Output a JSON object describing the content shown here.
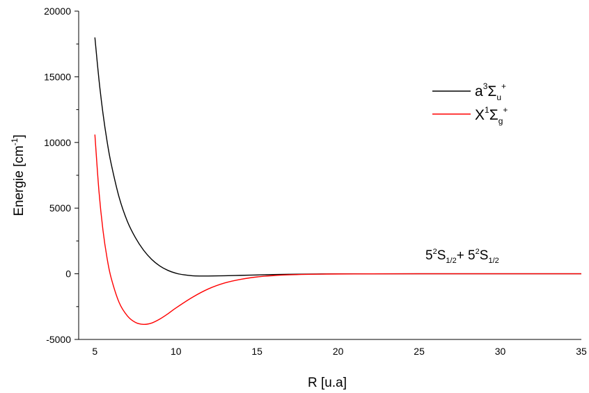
{
  "chart_data": {
    "type": "line",
    "xlabel": "R [u.a]",
    "ylabel": {
      "base": "Energie [cm",
      "sup": "-1",
      "end": "]"
    },
    "xlim": [
      4,
      35
    ],
    "ylim": [
      -5000,
      20000
    ],
    "x_ticks": [
      5,
      10,
      15,
      20,
      25,
      30,
      35
    ],
    "y_ticks": [
      -5000,
      0,
      5000,
      10000,
      15000,
      20000
    ],
    "x_tick_labels": [
      "5",
      "10",
      "15",
      "20",
      "25",
      "30",
      "35"
    ],
    "y_tick_labels": [
      "-5000",
      "0",
      "5000",
      "10000",
      "15000",
      "20000"
    ],
    "grid": false,
    "legend_position": "top-right",
    "series": [
      {
        "color": "#000000",
        "legend": {
          "base": "a",
          "sup": "3",
          "sym": "Σ",
          "sub": "u",
          "sup2": "+"
        },
        "x": [
          5,
          5.25,
          5.5,
          5.75,
          6,
          6.5,
          7,
          7.5,
          8,
          8.5,
          9,
          9.5,
          10,
          10.5,
          11,
          11.5,
          12,
          13,
          14,
          15,
          16,
          17,
          18,
          19,
          20,
          22,
          25,
          30,
          35
        ],
        "y": [
          18000,
          14800,
          12200,
          10100,
          8400,
          5800,
          4000,
          2750,
          1800,
          1100,
          600,
          260,
          40,
          -80,
          -150,
          -170,
          -170,
          -150,
          -120,
          -90,
          -60,
          -40,
          -25,
          -15,
          -8,
          -3,
          0,
          0,
          0
        ]
      },
      {
        "color": "#ff0000",
        "legend": {
          "base": "X",
          "sup": "1",
          "sym": "Σ",
          "sub": "g",
          "sup2": "+"
        },
        "x": [
          5,
          5.25,
          5.5,
          5.75,
          6,
          6.5,
          7,
          7.5,
          8,
          8.5,
          9,
          9.5,
          10,
          11,
          12,
          13,
          14,
          15,
          16,
          17,
          18,
          19,
          20,
          22,
          25,
          30,
          35
        ],
        "y": [
          10600,
          6300,
          3300,
          1200,
          -300,
          -2200,
          -3200,
          -3700,
          -3850,
          -3750,
          -3450,
          -3050,
          -2600,
          -1800,
          -1150,
          -700,
          -420,
          -240,
          -140,
          -80,
          -45,
          -25,
          -15,
          -5,
          0,
          0,
          0
        ]
      }
    ],
    "annotation": {
      "a": "5",
      "b": "2",
      "c": "S",
      "d": "1/2",
      "e": "+ 5",
      "f": "2",
      "g": "S",
      "h": "1/2"
    }
  }
}
